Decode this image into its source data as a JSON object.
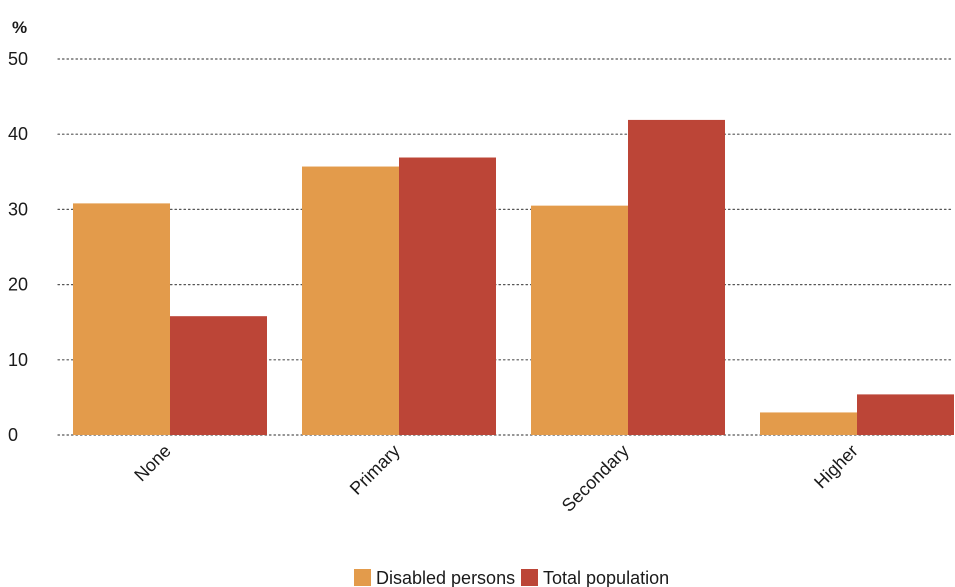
{
  "chart_data": {
    "type": "bar",
    "ylabel": "%",
    "ylim": [
      0,
      50
    ],
    "yticks": [
      0,
      10,
      20,
      30,
      40,
      50
    ],
    "categories": [
      "None",
      "Primary",
      "Secondary",
      "Higher"
    ],
    "series": [
      {
        "name": "Disabled persons",
        "values": [
          30.8,
          35.7,
          30.5,
          3.0
        ],
        "color": "#E39B4B"
      },
      {
        "name": "Total population",
        "values": [
          15.8,
          36.9,
          41.9,
          5.4
        ],
        "color": "#BC4537"
      }
    ],
    "grid": true,
    "grid_style": "dotted",
    "legend_position": "bottom-center"
  }
}
